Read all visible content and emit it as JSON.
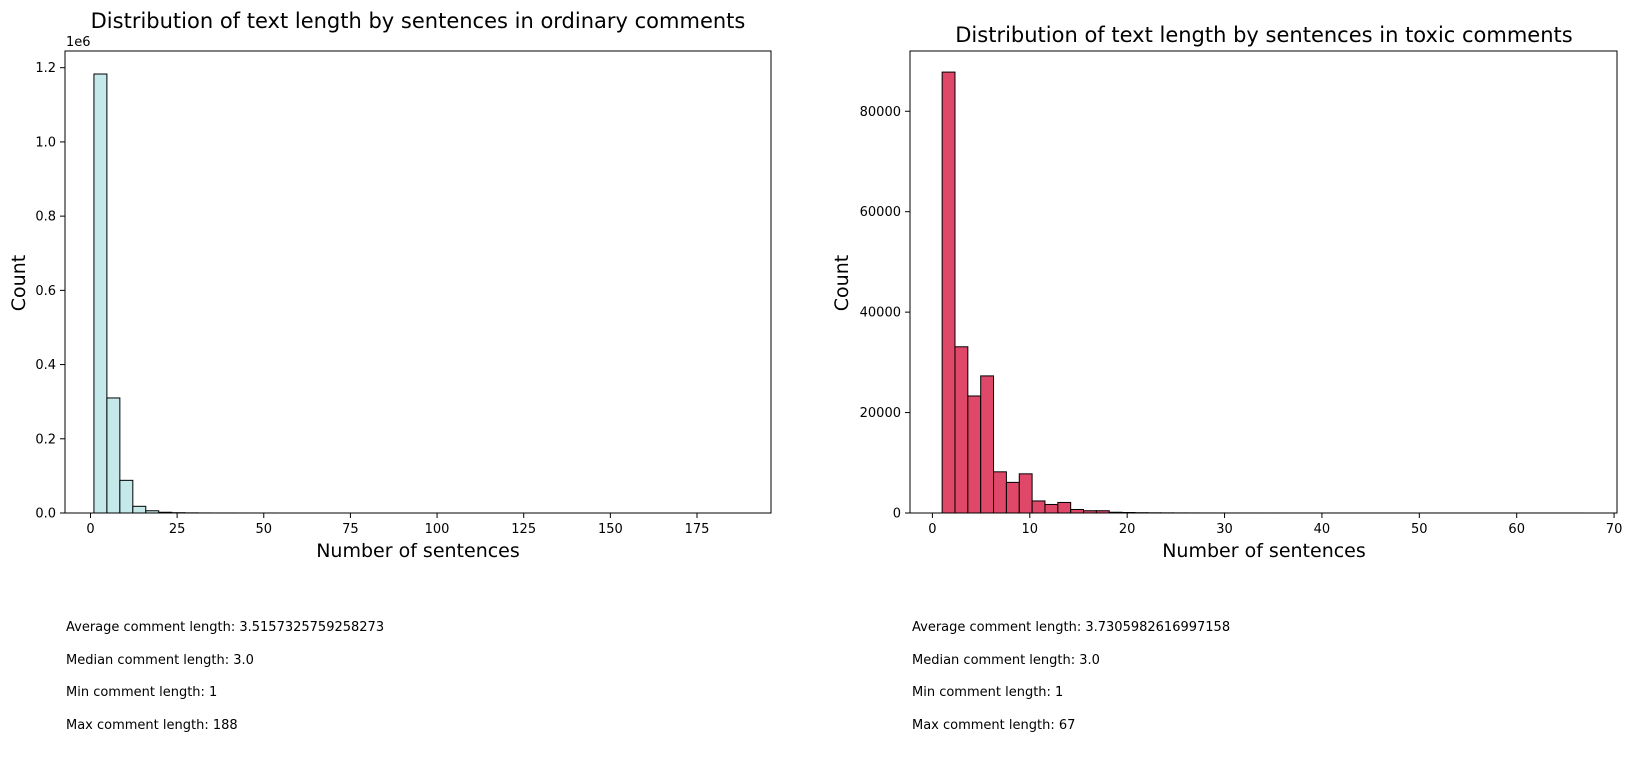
{
  "chart_data": [
    {
      "type": "bar",
      "title": "Distribution of text length by sentences in ordinary comments",
      "xlabel": "Number of sentences",
      "ylabel": "Count",
      "y_offset_label": "1e6",
      "color": "#c5e8ea",
      "edge_color": "#000000",
      "xlim": [
        -7.35,
        196.35
      ],
      "ylim": [
        0,
        1.245
      ],
      "xticks": [
        0,
        25,
        50,
        75,
        100,
        125,
        150,
        175
      ],
      "xtick_labels": [
        "0",
        "25",
        "50",
        "75",
        "100",
        "125",
        "150",
        "175"
      ],
      "yticks": [
        0,
        0.2,
        0.4,
        0.6,
        0.8,
        1.0,
        1.2
      ],
      "ytick_labels": [
        "0.0",
        "0.2",
        "0.4",
        "0.6",
        "0.8",
        "1.0",
        "1.2"
      ],
      "bins": [
        {
          "x0": 1,
          "x1": 4.74,
          "value": 1.183
        },
        {
          "x0": 4.74,
          "x1": 8.48,
          "value": 0.31
        },
        {
          "x0": 8.48,
          "x1": 12.22,
          "value": 0.088
        },
        {
          "x0": 12.22,
          "x1": 15.96,
          "value": 0.018
        },
        {
          "x0": 15.96,
          "x1": 19.7,
          "value": 0.006
        },
        {
          "x0": 19.7,
          "x1": 23.44,
          "value": 0.002
        },
        {
          "x0": 23.44,
          "x1": 27.18,
          "value": 0.0008
        },
        {
          "x0": 27.18,
          "x1": 30.92,
          "value": 0.0004
        },
        {
          "x0": 30.92,
          "x1": 34.66,
          "value": 0.0002
        },
        {
          "x0": 34.66,
          "x1": 38.4,
          "value": 0.0001
        },
        {
          "x0": 38.4,
          "x1": 42.14,
          "value": 0.0001
        },
        {
          "x0": 42.14,
          "x1": 45.88,
          "value": 5e-05
        },
        {
          "x0": 45.88,
          "x1": 49.62,
          "value": 3e-05
        },
        {
          "x0": 49.62,
          "x1": 53.36,
          "value": 2e-05
        },
        {
          "x0": 53.36,
          "x1": 57.1,
          "value": 1e-05
        },
        {
          "x0": 57.1,
          "x1": 60.84,
          "value": 1e-05
        },
        {
          "x0": 60.84,
          "x1": 64.58,
          "value": 1e-05
        },
        {
          "x0": 64.58,
          "x1": 68.32,
          "value": 5e-06
        },
        {
          "x0": 68.32,
          "x1": 72.06,
          "value": 5e-06
        },
        {
          "x0": 72.06,
          "x1": 75.8,
          "value": 4e-06
        },
        {
          "x0": 75.8,
          "x1": 79.54,
          "value": 3e-06
        },
        {
          "x0": 79.54,
          "x1": 83.28,
          "value": 3e-06
        },
        {
          "x0": 83.28,
          "x1": 87.02,
          "value": 2e-06
        },
        {
          "x0": 87.02,
          "x1": 90.76,
          "value": 2e-06
        },
        {
          "x0": 90.76,
          "x1": 94.5,
          "value": 2e-06
        },
        {
          "x0": 94.5,
          "x1": 98.24,
          "value": 1e-06
        },
        {
          "x0": 98.24,
          "x1": 101.98,
          "value": 1e-06
        },
        {
          "x0": 101.98,
          "x1": 105.72,
          "value": 1e-06
        },
        {
          "x0": 105.72,
          "x1": 109.46,
          "value": 1e-06
        },
        {
          "x0": 109.46,
          "x1": 113.2,
          "value": 1e-06
        },
        {
          "x0": 113.2,
          "x1": 116.94,
          "value": 1e-06
        },
        {
          "x0": 116.94,
          "x1": 120.68,
          "value": 1e-06
        },
        {
          "x0": 120.68,
          "x1": 124.42,
          "value": 1e-06
        },
        {
          "x0": 124.42,
          "x1": 128.16,
          "value": 1e-06
        },
        {
          "x0": 128.16,
          "x1": 131.9,
          "value": 1e-06
        },
        {
          "x0": 131.9,
          "x1": 135.64,
          "value": 1e-06
        },
        {
          "x0": 135.64,
          "x1": 139.38,
          "value": 1e-06
        },
        {
          "x0": 139.38,
          "x1": 143.12,
          "value": 1e-06
        },
        {
          "x0": 143.12,
          "x1": 146.86,
          "value": 1e-06
        },
        {
          "x0": 146.86,
          "x1": 150.6,
          "value": 1e-06
        },
        {
          "x0": 150.6,
          "x1": 154.34,
          "value": 1e-06
        },
        {
          "x0": 154.34,
          "x1": 158.08,
          "value": 1e-06
        },
        {
          "x0": 158.08,
          "x1": 161.82,
          "value": 1e-06
        },
        {
          "x0": 161.82,
          "x1": 165.56,
          "value": 1e-06
        },
        {
          "x0": 165.56,
          "x1": 169.3,
          "value": 1e-06
        },
        {
          "x0": 169.3,
          "x1": 173.04,
          "value": 1e-06
        },
        {
          "x0": 173.04,
          "x1": 176.78,
          "value": 1e-06
        },
        {
          "x0": 176.78,
          "x1": 180.52,
          "value": 1e-06
        },
        {
          "x0": 180.52,
          "x1": 184.26,
          "value": 1e-06
        },
        {
          "x0": 184.26,
          "x1": 188,
          "value": 1e-06
        }
      ]
    },
    {
      "type": "bar",
      "title": "Distribution of text length by sentences in toxic comments",
      "xlabel": "Number of sentences",
      "ylabel": "Count",
      "color": "#e0486a",
      "edge_color": "#000000",
      "xlim": [
        -2.3,
        70.3
      ],
      "ylim": [
        0,
        92000
      ],
      "xticks": [
        0,
        10,
        20,
        30,
        40,
        50,
        60,
        70
      ],
      "xtick_labels": [
        "0",
        "10",
        "20",
        "30",
        "40",
        "50",
        "60",
        "70"
      ],
      "yticks": [
        0,
        20000,
        40000,
        60000,
        80000
      ],
      "ytick_labels": [
        "0",
        "20000",
        "40000",
        "60000",
        "80000"
      ],
      "bins": [
        {
          "x0": 1,
          "x1": 2.32,
          "value": 87800
        },
        {
          "x0": 2.32,
          "x1": 3.64,
          "value": 33100
        },
        {
          "x0": 3.64,
          "x1": 4.96,
          "value": 23300
        },
        {
          "x0": 4.96,
          "x1": 6.28,
          "value": 27300
        },
        {
          "x0": 6.28,
          "x1": 7.6,
          "value": 8200
        },
        {
          "x0": 7.6,
          "x1": 8.92,
          "value": 6100
        },
        {
          "x0": 8.92,
          "x1": 10.24,
          "value": 7800
        },
        {
          "x0": 10.24,
          "x1": 11.56,
          "value": 2400
        },
        {
          "x0": 11.56,
          "x1": 12.88,
          "value": 1700
        },
        {
          "x0": 12.88,
          "x1": 14.2,
          "value": 2100
        },
        {
          "x0": 14.2,
          "x1": 15.52,
          "value": 700
        },
        {
          "x0": 15.52,
          "x1": 16.84,
          "value": 450
        },
        {
          "x0": 16.84,
          "x1": 18.16,
          "value": 450
        },
        {
          "x0": 18.16,
          "x1": 19.48,
          "value": 150
        },
        {
          "x0": 19.48,
          "x1": 20.8,
          "value": 100
        },
        {
          "x0": 20.8,
          "x1": 22.12,
          "value": 60
        },
        {
          "x0": 22.12,
          "x1": 23.44,
          "value": 40
        },
        {
          "x0": 23.44,
          "x1": 24.76,
          "value": 30
        },
        {
          "x0": 24.76,
          "x1": 26.08,
          "value": 20
        },
        {
          "x0": 26.08,
          "x1": 27.4,
          "value": 15
        },
        {
          "x0": 27.4,
          "x1": 28.72,
          "value": 10
        },
        {
          "x0": 28.72,
          "x1": 30.04,
          "value": 8
        },
        {
          "x0": 30.04,
          "x1": 31.36,
          "value": 6
        },
        {
          "x0": 31.36,
          "x1": 32.68,
          "value": 5
        },
        {
          "x0": 32.68,
          "x1": 34,
          "value": 4
        },
        {
          "x0": 34,
          "x1": 35.32,
          "value": 3
        },
        {
          "x0": 35.32,
          "x1": 36.64,
          "value": 3
        },
        {
          "x0": 36.64,
          "x1": 37.96,
          "value": 2
        },
        {
          "x0": 37.96,
          "x1": 39.28,
          "value": 2
        },
        {
          "x0": 39.28,
          "x1": 40.6,
          "value": 2
        },
        {
          "x0": 40.6,
          "x1": 41.92,
          "value": 1
        },
        {
          "x0": 41.92,
          "x1": 43.24,
          "value": 1
        },
        {
          "x0": 43.24,
          "x1": 44.56,
          "value": 1
        },
        {
          "x0": 44.56,
          "x1": 45.88,
          "value": 1
        },
        {
          "x0": 45.88,
          "x1": 47.2,
          "value": 1
        },
        {
          "x0": 47.2,
          "x1": 48.52,
          "value": 1
        },
        {
          "x0": 48.52,
          "x1": 49.84,
          "value": 1
        },
        {
          "x0": 49.84,
          "x1": 51.16,
          "value": 1
        },
        {
          "x0": 51.16,
          "x1": 52.48,
          "value": 1
        },
        {
          "x0": 52.48,
          "x1": 53.8,
          "value": 1
        },
        {
          "x0": 53.8,
          "x1": 55.12,
          "value": 1
        },
        {
          "x0": 55.12,
          "x1": 56.44,
          "value": 1
        },
        {
          "x0": 56.44,
          "x1": 57.76,
          "value": 1
        },
        {
          "x0": 57.76,
          "x1": 59.08,
          "value": 1
        },
        {
          "x0": 59.08,
          "x1": 60.4,
          "value": 1
        },
        {
          "x0": 60.4,
          "x1": 61.72,
          "value": 1
        },
        {
          "x0": 61.72,
          "x1": 63.04,
          "value": 1
        },
        {
          "x0": 63.04,
          "x1": 64.36,
          "value": 1
        },
        {
          "x0": 64.36,
          "x1": 65.68,
          "value": 1
        },
        {
          "x0": 65.68,
          "x1": 67,
          "value": 1
        }
      ]
    }
  ],
  "stats": [
    {
      "average": "Average comment length: 3.5157325759258273",
      "median": "Median comment length: 3.0",
      "min": "Min comment length: 1",
      "max": "Max comment length: 188"
    },
    {
      "average": "Average comment length: 3.7305982616997158",
      "median": "Median comment length: 3.0",
      "min": "Min comment length: 1",
      "max": "Max comment length: 67"
    }
  ]
}
